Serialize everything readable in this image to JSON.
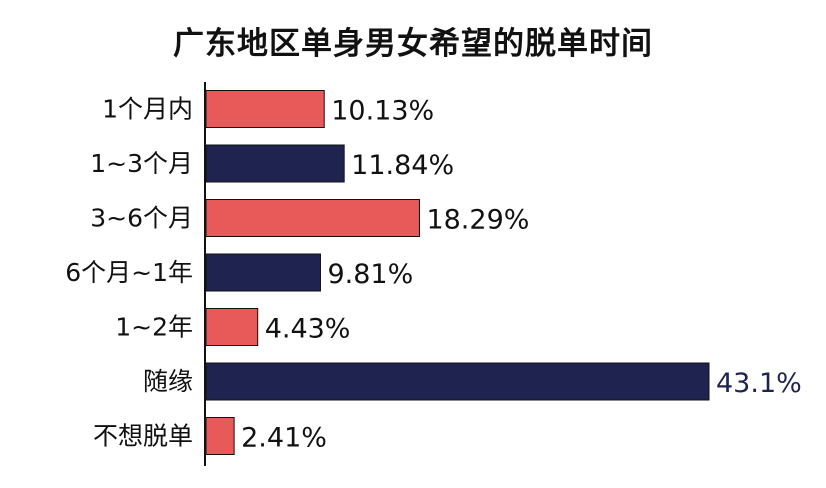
{
  "chart_data": {
    "type": "bar",
    "orientation": "horizontal",
    "title": "广东地区单身男女希望的脱单时间",
    "categories": [
      "1个月内",
      "1~3个月",
      "3~6个月",
      "6个月~1年",
      "1~2年",
      "随缘",
      "不想脱单"
    ],
    "values": [
      10.13,
      11.84,
      18.29,
      9.81,
      4.43,
      43.1,
      2.41
    ],
    "value_labels": [
      "10.13%",
      "11.84%",
      "18.29%",
      "9.81%",
      "4.43%",
      "43.1%",
      "2.41%"
    ],
    "unit": "%",
    "xlim": [
      0,
      43.1
    ],
    "grid": false,
    "legend": "none",
    "bar_colors": [
      "#e85a5a",
      "#1f2350",
      "#e85a5a",
      "#1f2350",
      "#e85a5a",
      "#1f2350",
      "#e85a5a"
    ],
    "label_color": "#111111",
    "highlight_label_color": "#1f2350"
  }
}
